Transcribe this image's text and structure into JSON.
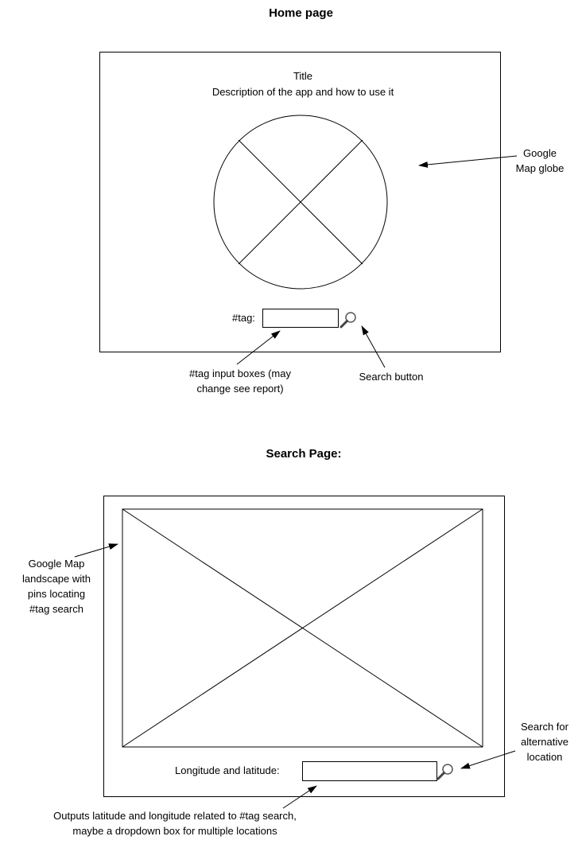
{
  "home": {
    "heading": "Home page",
    "title": "Title",
    "description": "Description of the app and how to use it",
    "globe_note_lines": [
      "Google",
      "Map globe"
    ],
    "tag_label": "#tag:",
    "tag_input_value": "",
    "tag_input_note_lines": [
      "#tag input boxes (may",
      "change see report)"
    ],
    "search_button_note": "Search button"
  },
  "search": {
    "heading": "Search Page:",
    "map_note_lines": [
      "Google Map",
      "landscape with",
      "pins locating",
      "#tag search"
    ],
    "coords_label": "Longitude and latitude:",
    "coords_input_value": "",
    "alt_search_note_lines": [
      "Search for",
      "alternative",
      "location"
    ],
    "output_note_lines": [
      "Outputs latitude and longitude related to #tag search,",
      "maybe a dropdown box for multiple locations"
    ]
  }
}
